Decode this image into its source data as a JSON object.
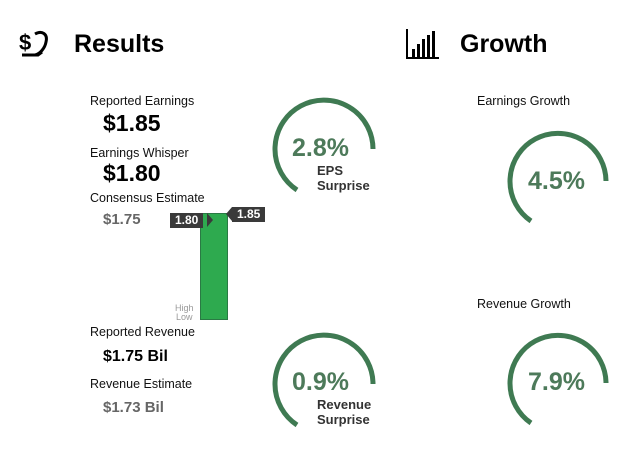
{
  "results": {
    "title": "Results",
    "reported_earnings": {
      "label": "Reported Earnings",
      "value": "$1.85"
    },
    "earnings_whisper": {
      "label": "Earnings Whisper",
      "value": "$1.80"
    },
    "consensus_estimate": {
      "label": "Consensus Estimate",
      "value": "$1.75"
    },
    "reported_revenue": {
      "label": "Reported Revenue",
      "value": "$1.75 Bil"
    },
    "revenue_estimate": {
      "label": "Revenue Estimate",
      "value": "$1.73 Bil"
    },
    "bar_chart": {
      "whisper_tag": "1.80",
      "reported_tag": "1.85",
      "high_label": "High",
      "low_label": "Low"
    },
    "eps_surprise": {
      "percent": "2.8%",
      "line1": "EPS",
      "line2": "Surprise"
    },
    "revenue_surprise": {
      "percent": "0.9%",
      "line1": "Revenue",
      "line2": "Surprise"
    }
  },
  "growth": {
    "title": "Growth",
    "earnings_growth": {
      "label": "Earnings Growth",
      "percent": "4.5%"
    },
    "revenue_growth": {
      "label": "Revenue Growth",
      "percent": "7.9%"
    }
  },
  "colors": {
    "gauge": "#3f7a52",
    "bar": "#2eaa4f",
    "tag": "#3a3a3a"
  },
  "icons": {
    "results": "money-hand-icon",
    "growth": "bar-chart-icon"
  }
}
